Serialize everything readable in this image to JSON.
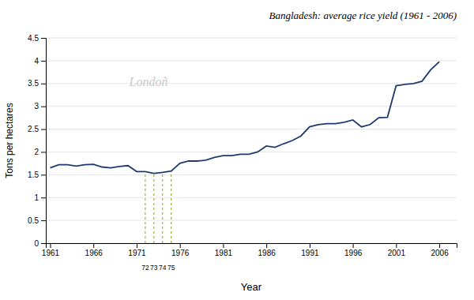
{
  "chart_data": {
    "type": "line",
    "title": "Bangladesh: average rice yield (1961 - 2006)",
    "xlabel": "Year",
    "ylabel": "Tons per hectares",
    "color": "#1f3a6e",
    "x": [
      1961,
      1962,
      1963,
      1964,
      1965,
      1966,
      1967,
      1968,
      1969,
      1970,
      1971,
      1972,
      1973,
      1974,
      1975,
      1976,
      1977,
      1978,
      1979,
      1980,
      1981,
      1982,
      1983,
      1984,
      1985,
      1986,
      1987,
      1988,
      1989,
      1990,
      1991,
      1992,
      1993,
      1994,
      1995,
      1996,
      1997,
      1998,
      1999,
      2000,
      2001,
      2002,
      2003,
      2004,
      2005,
      2006
    ],
    "values": [
      1.65,
      1.72,
      1.72,
      1.69,
      1.72,
      1.73,
      1.67,
      1.65,
      1.68,
      1.7,
      1.57,
      1.57,
      1.53,
      1.55,
      1.58,
      1.75,
      1.8,
      1.8,
      1.82,
      1.88,
      1.92,
      1.92,
      1.95,
      1.95,
      2.0,
      2.13,
      2.1,
      2.18,
      2.25,
      2.35,
      2.55,
      2.6,
      2.62,
      2.62,
      2.65,
      2.7,
      2.55,
      2.6,
      2.75,
      2.76,
      3.45,
      3.48,
      3.5,
      3.55,
      3.8,
      3.98
    ],
    "xlim": [
      1960.5,
      2008
    ],
    "ylim": [
      0,
      4.5
    ],
    "xticks": [
      1961,
      1966,
      1971,
      1976,
      1981,
      1986,
      1991,
      1996,
      2001,
      2006
    ],
    "yticks": [
      0,
      0.5,
      1,
      1.5,
      2,
      2.5,
      3,
      3.5,
      4,
      4.5
    ],
    "grid": true,
    "annotations": [
      {
        "text": "72",
        "x": 1972,
        "color": "#9a9a00",
        "line_style": "dashed"
      },
      {
        "text": "73",
        "x": 1973,
        "color": "#9a9a00",
        "line_style": "dashed"
      },
      {
        "text": "74",
        "x": 1974,
        "color": "#9a9a00",
        "line_style": "dashed"
      },
      {
        "text": "75",
        "x": 1975,
        "color": "#9a9a00",
        "line_style": "dashed"
      },
      {
        "text": "Londoñ"
      }
    ]
  }
}
